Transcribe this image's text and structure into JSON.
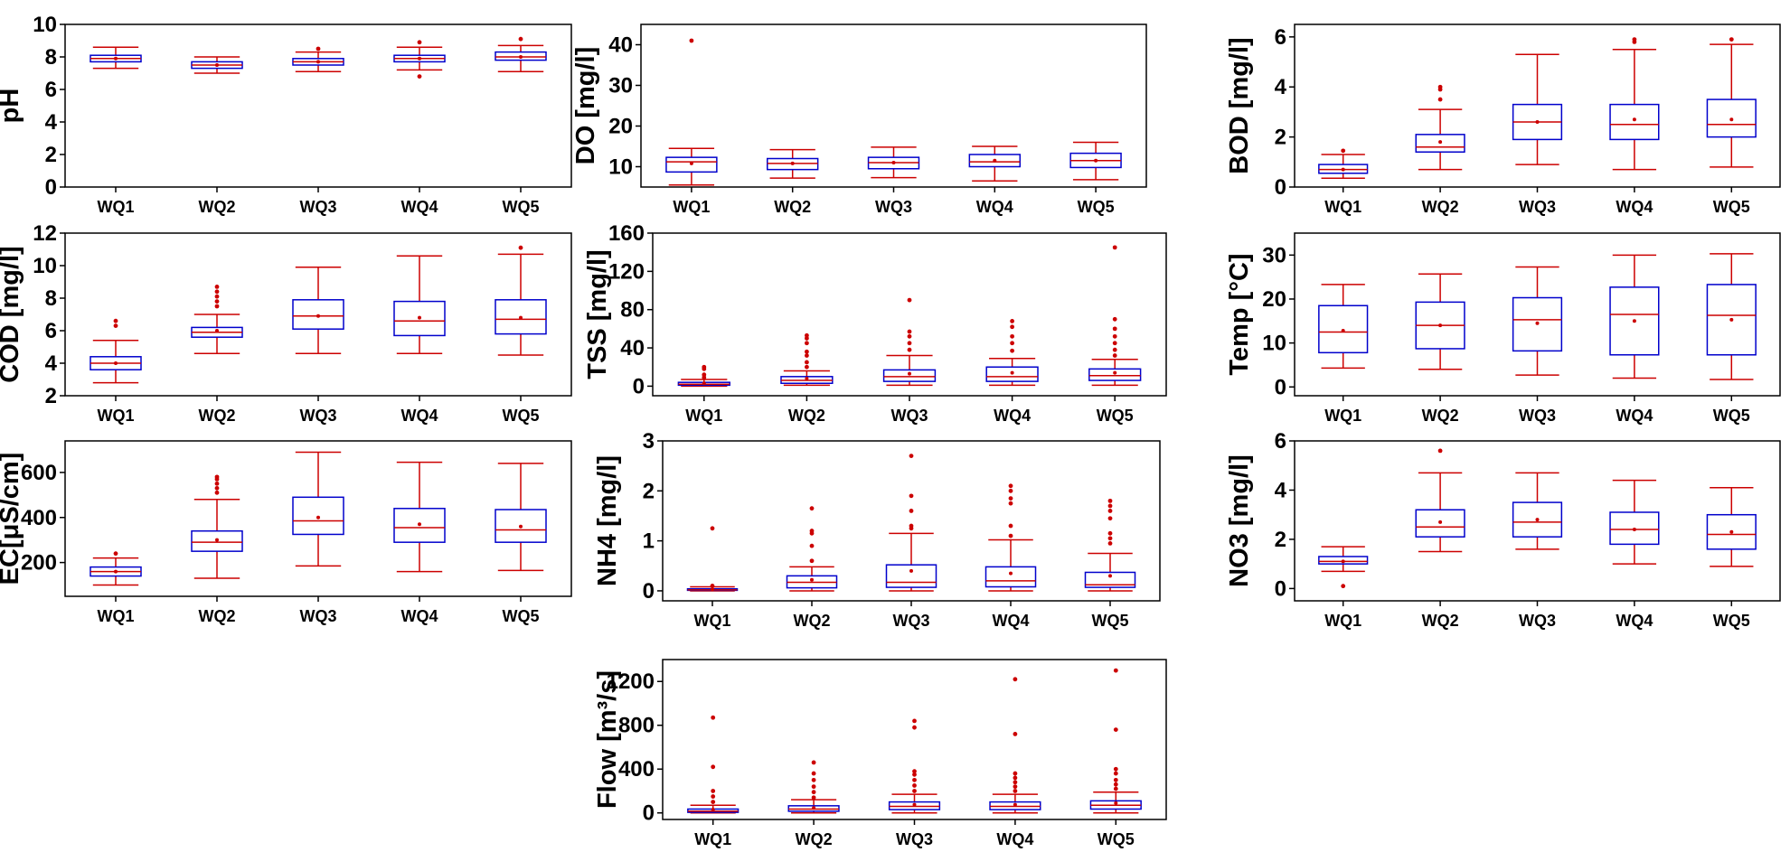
{
  "colors": {
    "box": "#0000cc",
    "whisker": "#cc0000",
    "outlier": "#cc0000",
    "axis": "#000000"
  },
  "chart_data": [
    {
      "type": "boxplot",
      "ylabel": "pH",
      "ylim": [
        0,
        10
      ],
      "yticks": [
        "0",
        "2",
        "4",
        "6",
        "8",
        "10"
      ],
      "categories": [
        "WQ1",
        "WQ2",
        "WQ3",
        "WQ4",
        "WQ5"
      ],
      "boxes": [
        {
          "whisker_low": 7.3,
          "q1": 7.7,
          "median": 7.9,
          "q3": 8.1,
          "whisker_high": 8.6,
          "mean": 7.9,
          "outliers": []
        },
        {
          "whisker_low": 7.0,
          "q1": 7.3,
          "median": 7.5,
          "q3": 7.7,
          "whisker_high": 8.0,
          "mean": 7.5,
          "outliers": []
        },
        {
          "whisker_low": 7.1,
          "q1": 7.5,
          "median": 7.7,
          "q3": 7.9,
          "whisker_high": 8.3,
          "mean": 7.7,
          "outliers": [
            8.5
          ]
        },
        {
          "whisker_low": 7.2,
          "q1": 7.7,
          "median": 7.9,
          "q3": 8.1,
          "whisker_high": 8.6,
          "mean": 7.9,
          "outliers": [
            8.9,
            6.8
          ]
        },
        {
          "whisker_low": 7.1,
          "q1": 7.8,
          "median": 8.0,
          "q3": 8.3,
          "whisker_high": 8.7,
          "mean": 8.0,
          "outliers": [
            9.1
          ]
        }
      ]
    },
    {
      "type": "boxplot",
      "ylabel": "DO [mg/l]",
      "ylim": [
        5,
        45
      ],
      "yticks": [
        "10",
        "20",
        "30",
        "40"
      ],
      "categories": [
        "WQ1",
        "WQ2",
        "WQ3",
        "WQ4",
        "WQ5"
      ],
      "boxes": [
        {
          "whisker_low": 5.5,
          "q1": 8.7,
          "median": 11.2,
          "q3": 12.3,
          "whisker_high": 14.5,
          "mean": 10.8,
          "outliers": [
            41
          ]
        },
        {
          "whisker_low": 7.2,
          "q1": 9.3,
          "median": 10.8,
          "q3": 12.0,
          "whisker_high": 14.2,
          "mean": 10.8,
          "outliers": []
        },
        {
          "whisker_low": 7.3,
          "q1": 9.5,
          "median": 11.0,
          "q3": 12.3,
          "whisker_high": 14.8,
          "mean": 11.0,
          "outliers": []
        },
        {
          "whisker_low": 6.5,
          "q1": 10.0,
          "median": 11.2,
          "q3": 13.0,
          "whisker_high": 15.0,
          "mean": 11.5,
          "outliers": []
        },
        {
          "whisker_low": 6.8,
          "q1": 9.8,
          "median": 11.5,
          "q3": 13.3,
          "whisker_high": 16.0,
          "mean": 11.5,
          "outliers": []
        }
      ]
    },
    {
      "type": "boxplot",
      "ylabel": "BOD [mg/l]",
      "ylim": [
        0,
        6.5
      ],
      "yticks": [
        "0",
        "2",
        "4",
        "6"
      ],
      "categories": [
        "WQ1",
        "WQ2",
        "WQ3",
        "WQ4",
        "WQ5"
      ],
      "boxes": [
        {
          "whisker_low": 0.35,
          "q1": 0.55,
          "median": 0.7,
          "q3": 0.9,
          "whisker_high": 1.3,
          "mean": 0.7,
          "outliers": [
            1.45
          ]
        },
        {
          "whisker_low": 0.7,
          "q1": 1.4,
          "median": 1.6,
          "q3": 2.1,
          "whisker_high": 3.1,
          "mean": 1.8,
          "outliers": [
            3.5,
            3.9,
            4.0
          ]
        },
        {
          "whisker_low": 0.9,
          "q1": 1.9,
          "median": 2.6,
          "q3": 3.3,
          "whisker_high": 5.3,
          "mean": 2.6,
          "outliers": []
        },
        {
          "whisker_low": 0.7,
          "q1": 1.9,
          "median": 2.5,
          "q3": 3.3,
          "whisker_high": 5.5,
          "mean": 2.7,
          "outliers": [
            5.8,
            5.9
          ]
        },
        {
          "whisker_low": 0.8,
          "q1": 2.0,
          "median": 2.5,
          "q3": 3.5,
          "whisker_high": 5.7,
          "mean": 2.7,
          "outliers": [
            5.9
          ]
        }
      ]
    },
    {
      "type": "boxplot",
      "ylabel": "COD [mg/l]",
      "ylim": [
        2,
        12
      ],
      "yticks": [
        "2",
        "4",
        "6",
        "8",
        "10",
        "12"
      ],
      "categories": [
        "WQ1",
        "WQ2",
        "WQ3",
        "WQ4",
        "WQ5"
      ],
      "boxes": [
        {
          "whisker_low": 2.8,
          "q1": 3.6,
          "median": 4.0,
          "q3": 4.4,
          "whisker_high": 5.4,
          "mean": 4.0,
          "outliers": [
            6.3,
            6.6
          ]
        },
        {
          "whisker_low": 4.6,
          "q1": 5.6,
          "median": 5.9,
          "q3": 6.2,
          "whisker_high": 7.0,
          "mean": 6.0,
          "outliers": [
            7.5,
            7.8,
            8.1,
            8.4,
            8.7
          ]
        },
        {
          "whisker_low": 4.6,
          "q1": 6.1,
          "median": 6.9,
          "q3": 7.9,
          "whisker_high": 9.9,
          "mean": 6.9,
          "outliers": []
        },
        {
          "whisker_low": 4.6,
          "q1": 5.7,
          "median": 6.6,
          "q3": 7.8,
          "whisker_high": 10.6,
          "mean": 6.8,
          "outliers": []
        },
        {
          "whisker_low": 4.5,
          "q1": 5.8,
          "median": 6.7,
          "q3": 7.9,
          "whisker_high": 10.7,
          "mean": 6.8,
          "outliers": [
            11.1
          ]
        }
      ]
    },
    {
      "type": "boxplot",
      "ylabel": "TSS [mg/l]",
      "ylim": [
        -10,
        160
      ],
      "yticks": [
        "0",
        "40",
        "80",
        "120",
        "160"
      ],
      "categories": [
        "WQ1",
        "WQ2",
        "WQ3",
        "WQ4",
        "WQ5"
      ],
      "boxes": [
        {
          "whisker_low": 0,
          "q1": 1,
          "median": 2,
          "q3": 4,
          "whisker_high": 7,
          "mean": 3,
          "outliers": [
            9,
            12,
            18,
            20
          ]
        },
        {
          "whisker_low": 1,
          "q1": 3,
          "median": 6,
          "q3": 10,
          "whisker_high": 16,
          "mean": 8,
          "outliers": [
            20,
            25,
            32,
            36,
            45,
            50,
            53
          ]
        },
        {
          "whisker_low": 1,
          "q1": 5,
          "median": 10,
          "q3": 17,
          "whisker_high": 32,
          "mean": 13,
          "outliers": [
            38,
            45,
            52,
            57,
            90
          ]
        },
        {
          "whisker_low": 1,
          "q1": 5,
          "median": 10,
          "q3": 20,
          "whisker_high": 29,
          "mean": 14,
          "outliers": [
            37,
            45,
            52,
            62,
            68
          ]
        },
        {
          "whisker_low": 1,
          "q1": 6,
          "median": 11,
          "q3": 18,
          "whisker_high": 28,
          "mean": 14,
          "outliers": [
            32,
            38,
            45,
            52,
            60,
            70,
            145
          ]
        }
      ]
    },
    {
      "type": "boxplot",
      "ylabel": "Temp [°C]",
      "ylim": [
        -2,
        35
      ],
      "yticks": [
        "0",
        "10",
        "20",
        "30"
      ],
      "categories": [
        "WQ1",
        "WQ2",
        "WQ3",
        "WQ4",
        "WQ5"
      ],
      "boxes": [
        {
          "whisker_low": 4.3,
          "q1": 7.8,
          "median": 12.5,
          "q3": 18.5,
          "whisker_high": 23.3,
          "mean": 12.8,
          "outliers": []
        },
        {
          "whisker_low": 4.0,
          "q1": 8.7,
          "median": 14.0,
          "q3": 19.3,
          "whisker_high": 25.7,
          "mean": 14.0,
          "outliers": []
        },
        {
          "whisker_low": 2.7,
          "q1": 8.2,
          "median": 15.3,
          "q3": 20.3,
          "whisker_high": 27.3,
          "mean": 14.5,
          "outliers": []
        },
        {
          "whisker_low": 2.0,
          "q1": 7.3,
          "median": 16.5,
          "q3": 22.7,
          "whisker_high": 30.0,
          "mean": 15.0,
          "outliers": []
        },
        {
          "whisker_low": 1.7,
          "q1": 7.3,
          "median": 16.3,
          "q3": 23.3,
          "whisker_high": 30.3,
          "mean": 15.3,
          "outliers": []
        }
      ]
    },
    {
      "type": "boxplot",
      "ylabel": "EC[μS/cm]",
      "ylim": [
        50,
        740
      ],
      "yticks": [
        "200",
        "400",
        "600"
      ],
      "categories": [
        "WQ1",
        "WQ2",
        "WQ3",
        "WQ4",
        "WQ5"
      ],
      "boxes": [
        {
          "whisker_low": 100,
          "q1": 140,
          "median": 160,
          "q3": 180,
          "whisker_high": 220,
          "mean": 160,
          "outliers": [
            240
          ]
        },
        {
          "whisker_low": 130,
          "q1": 250,
          "median": 290,
          "q3": 340,
          "whisker_high": 480,
          "mean": 300,
          "outliers": [
            510,
            530,
            550,
            570,
            580
          ]
        },
        {
          "whisker_low": 185,
          "q1": 325,
          "median": 385,
          "q3": 490,
          "whisker_high": 690,
          "mean": 400,
          "outliers": []
        },
        {
          "whisker_low": 160,
          "q1": 290,
          "median": 355,
          "q3": 440,
          "whisker_high": 645,
          "mean": 370,
          "outliers": []
        },
        {
          "whisker_low": 165,
          "q1": 290,
          "median": 345,
          "q3": 435,
          "whisker_high": 640,
          "mean": 360,
          "outliers": []
        }
      ]
    },
    {
      "type": "boxplot",
      "ylabel": "NH4 [mg/l]",
      "ylim": [
        -0.2,
        3
      ],
      "yticks": [
        "0",
        "1",
        "2",
        "3"
      ],
      "categories": [
        "WQ1",
        "WQ2",
        "WQ3",
        "WQ4",
        "WQ5"
      ],
      "boxes": [
        {
          "whisker_low": 0,
          "q1": 0.01,
          "median": 0.02,
          "q3": 0.04,
          "whisker_high": 0.08,
          "mean": 0.03,
          "outliers": [
            0.1,
            1.25
          ]
        },
        {
          "whisker_low": 0,
          "q1": 0.06,
          "median": 0.17,
          "q3": 0.3,
          "whisker_high": 0.48,
          "mean": 0.22,
          "outliers": [
            0.6,
            0.9,
            1.15,
            1.2,
            1.65
          ]
        },
        {
          "whisker_low": 0,
          "q1": 0.07,
          "median": 0.17,
          "q3": 0.52,
          "whisker_high": 1.15,
          "mean": 0.4,
          "outliers": [
            1.25,
            1.3,
            1.6,
            1.9,
            2.7
          ]
        },
        {
          "whisker_low": 0,
          "q1": 0.08,
          "median": 0.2,
          "q3": 0.48,
          "whisker_high": 1.02,
          "mean": 0.35,
          "outliers": [
            1.1,
            1.3,
            1.75,
            1.85,
            2.0,
            2.1
          ]
        },
        {
          "whisker_low": 0,
          "q1": 0.07,
          "median": 0.12,
          "q3": 0.37,
          "whisker_high": 0.75,
          "mean": 0.3,
          "outliers": [
            0.95,
            1.05,
            1.15,
            1.45,
            1.6,
            1.7,
            1.8
          ]
        }
      ]
    },
    {
      "type": "boxplot",
      "ylabel": "NO3 [mg/l]",
      "ylim": [
        -0.5,
        6
      ],
      "yticks": [
        "0",
        "2",
        "4",
        "6"
      ],
      "categories": [
        "WQ1",
        "WQ2",
        "WQ3",
        "WQ4",
        "WQ5"
      ],
      "boxes": [
        {
          "whisker_low": 0.7,
          "q1": 1.0,
          "median": 1.1,
          "q3": 1.3,
          "whisker_high": 1.7,
          "mean": 1.1,
          "outliers": [
            0.1
          ]
        },
        {
          "whisker_low": 1.5,
          "q1": 2.1,
          "median": 2.5,
          "q3": 3.2,
          "whisker_high": 4.7,
          "mean": 2.7,
          "outliers": [
            5.6
          ]
        },
        {
          "whisker_low": 1.6,
          "q1": 2.1,
          "median": 2.7,
          "q3": 3.5,
          "whisker_high": 4.7,
          "mean": 2.8,
          "outliers": []
        },
        {
          "whisker_low": 1.0,
          "q1": 1.8,
          "median": 2.4,
          "q3": 3.1,
          "whisker_high": 4.4,
          "mean": 2.4,
          "outliers": []
        },
        {
          "whisker_low": 0.9,
          "q1": 1.6,
          "median": 2.2,
          "q3": 3.0,
          "whisker_high": 4.1,
          "mean": 2.3,
          "outliers": []
        }
      ]
    },
    {
      "type": "boxplot",
      "ylabel": "Flow [m³/s]",
      "ylim": [
        -60,
        1400
      ],
      "yticks": [
        "0",
        "400",
        "800",
        "1200"
      ],
      "categories": [
        "WQ1",
        "WQ2",
        "WQ3",
        "WQ4",
        "WQ5"
      ],
      "boxes": [
        {
          "whisker_low": 0,
          "q1": 5,
          "median": 15,
          "q3": 35,
          "whisker_high": 70,
          "mean": 30,
          "outliers": [
            100,
            150,
            200,
            420,
            870
          ]
        },
        {
          "whisker_low": 0,
          "q1": 15,
          "median": 35,
          "q3": 65,
          "whisker_high": 120,
          "mean": 45,
          "outliers": [
            140,
            190,
            240,
            300,
            360,
            460
          ]
        },
        {
          "whisker_low": 0,
          "q1": 30,
          "median": 60,
          "q3": 100,
          "whisker_high": 170,
          "mean": 75,
          "outliers": [
            200,
            250,
            300,
            350,
            380,
            780,
            840
          ]
        },
        {
          "whisker_low": 0,
          "q1": 30,
          "median": 60,
          "q3": 100,
          "whisker_high": 170,
          "mean": 75,
          "outliers": [
            200,
            240,
            280,
            320,
            360,
            720,
            1220
          ]
        },
        {
          "whisker_low": 0,
          "q1": 35,
          "median": 70,
          "q3": 110,
          "whisker_high": 190,
          "mean": 90,
          "outliers": [
            220,
            260,
            300,
            360,
            400,
            760,
            1300
          ]
        }
      ]
    }
  ]
}
